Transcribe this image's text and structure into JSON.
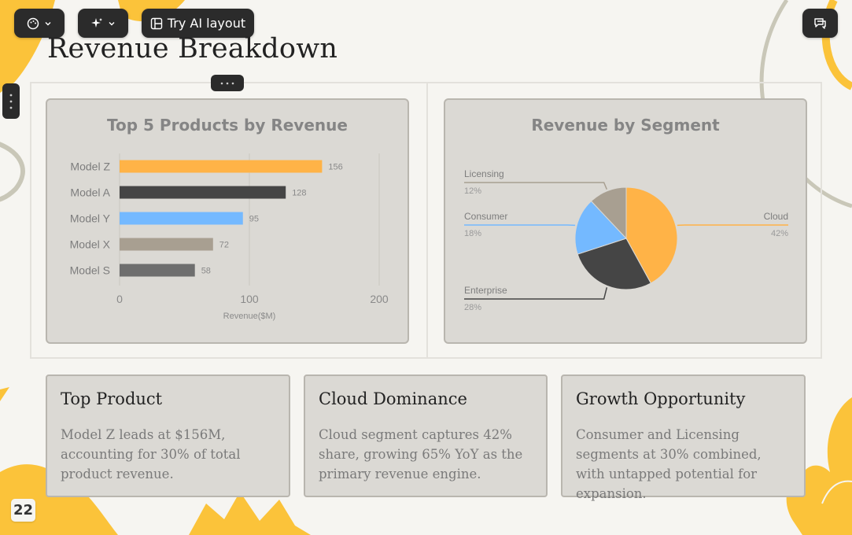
{
  "toolbar": {
    "ai_layout_label": "Try AI layout"
  },
  "slide": {
    "title": "Revenue Breakdown",
    "page_number": "22"
  },
  "colors": {
    "accent": "#ffb347",
    "dark": "#454545",
    "blue": "#74b9ff",
    "tan": "#a89f91",
    "gray": "#6e6e6e",
    "background": "#f6f5f1",
    "card": "#dbd9d4",
    "decoration_yellow": "#fbc33a"
  },
  "chart_data": [
    {
      "type": "bar",
      "orientation": "horizontal",
      "title": "Top 5 Products by Revenue",
      "categories": [
        "Model Z",
        "Model A",
        "Model Y",
        "Model X",
        "Model S"
      ],
      "values": [
        156,
        128,
        95,
        72,
        58
      ],
      "value_labels": [
        "156",
        "128",
        "95",
        "72",
        "58"
      ],
      "colors": [
        "#ffb347",
        "#454545",
        "#74b9ff",
        "#a89f91",
        "#6e6e6e"
      ],
      "xlabel": "Revenue($M)",
      "xlim": [
        0,
        200
      ],
      "xticks": [
        "0",
        "100",
        "200"
      ],
      "grid": true
    },
    {
      "type": "pie",
      "title": "Revenue by Segment",
      "slices": [
        {
          "label": "Cloud",
          "value": 42,
          "pct_label": "42%",
          "color": "#ffb347"
        },
        {
          "label": "Enterprise",
          "value": 28,
          "pct_label": "28%",
          "color": "#454545"
        },
        {
          "label": "Consumer",
          "value": 18,
          "pct_label": "18%",
          "color": "#74b9ff"
        },
        {
          "label": "Licensing",
          "value": 12,
          "pct_label": "12%",
          "color": "#a89f91"
        }
      ]
    }
  ],
  "cards": [
    {
      "title": "Top Product",
      "body": "Model Z leads at $156M, accounting for 30% of total product revenue."
    },
    {
      "title": "Cloud Dominance",
      "body": "Cloud segment captures 42% share, growing 65% YoY as the primary revenue engine."
    },
    {
      "title": "Growth Opportunity",
      "body": "Consumer and Licensing segments at 30% combined, with untapped potential for expansion."
    }
  ]
}
